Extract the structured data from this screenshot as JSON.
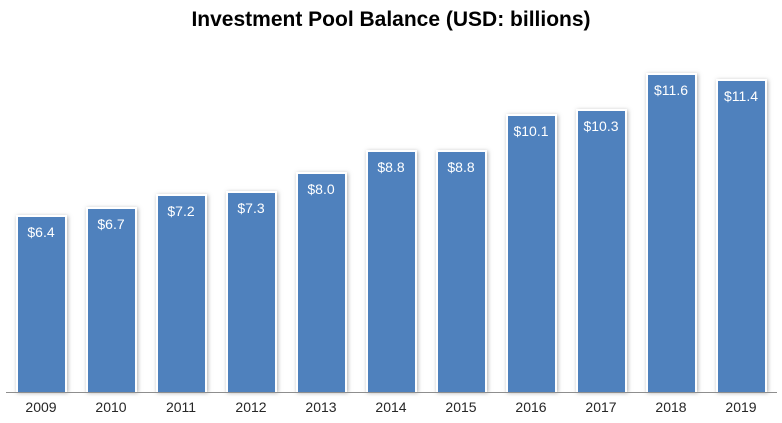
{
  "title": "Investment Pool Balance (USD: billions)",
  "chart_data": {
    "type": "bar",
    "title": "Investment Pool Balance (USD: billions)",
    "categories": [
      "2009",
      "2010",
      "2011",
      "2012",
      "2013",
      "2014",
      "2015",
      "2016",
      "2017",
      "2018",
      "2019"
    ],
    "values": [
      6.4,
      6.7,
      7.2,
      7.3,
      8.0,
      8.8,
      8.8,
      10.1,
      10.3,
      11.6,
      11.4
    ],
    "data_labels": [
      "$6.4",
      "$6.7",
      "$7.2",
      "$7.3",
      "$8.0",
      "$8.8",
      "$8.8",
      "$10.1",
      "$10.3",
      "$11.6",
      "$11.4"
    ],
    "xlabel": "",
    "ylabel": "",
    "ylim": [
      0,
      12.9
    ],
    "grid": false,
    "legend": false,
    "bar_color": "#4F81BD",
    "bar_border_color": "#FFFFFF",
    "data_label_color": "#FFFFFF",
    "axis_line_color": "#8E8E8E",
    "title_color": "#000000",
    "tick_label_color": "#262626"
  }
}
